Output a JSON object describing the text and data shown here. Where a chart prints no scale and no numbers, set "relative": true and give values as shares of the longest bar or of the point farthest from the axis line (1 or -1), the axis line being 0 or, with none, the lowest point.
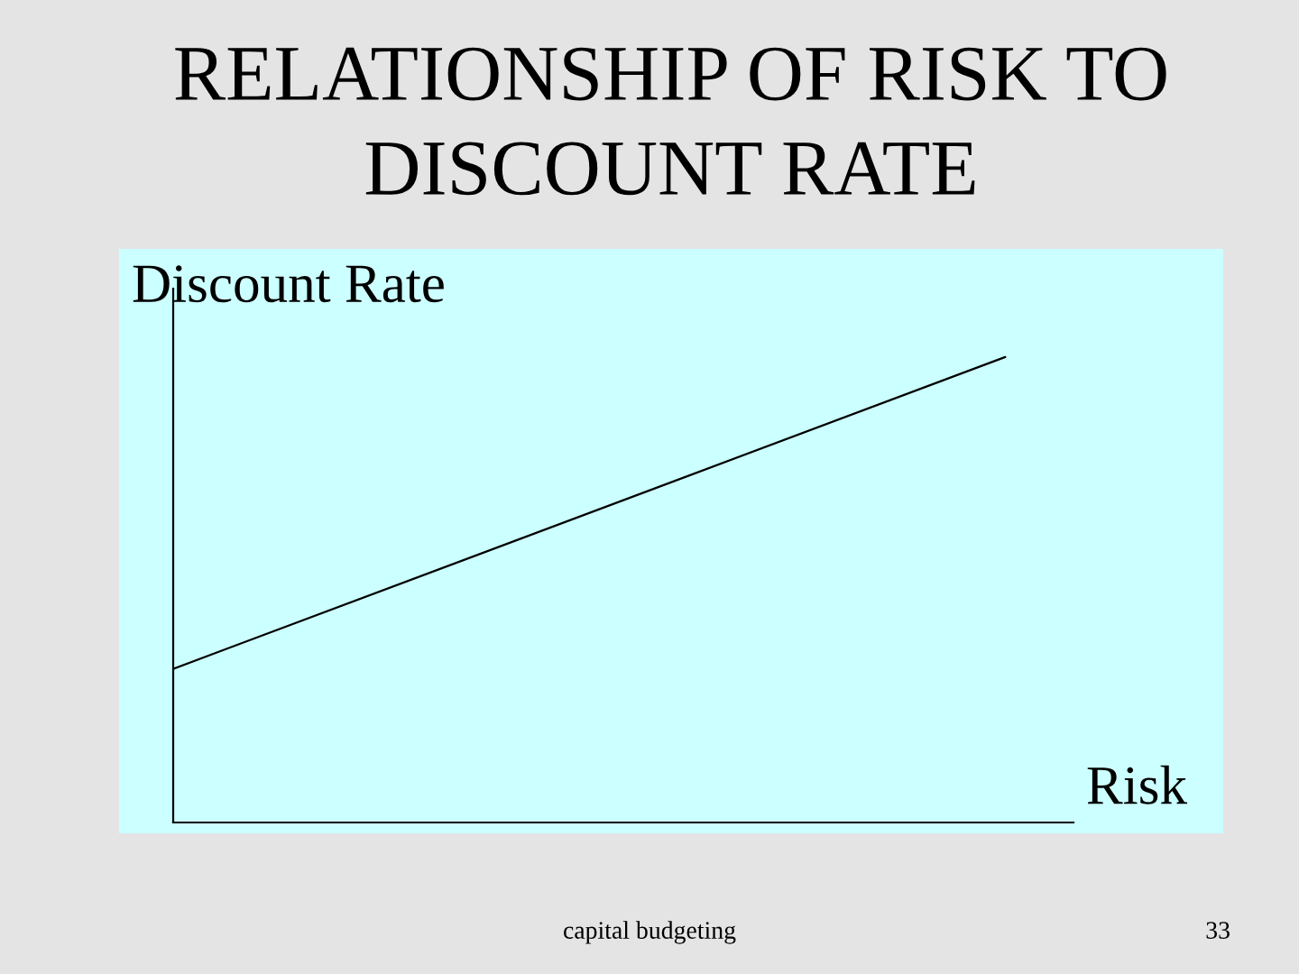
{
  "chart_data": {
    "type": "line",
    "title": "RELATIONSHIP OF RISK TO DISCOUNT RATE",
    "xlabel": "Risk",
    "ylabel": "Discount Rate",
    "categories": [
      null,
      null
    ],
    "series": [
      {
        "color": "#000000",
        "values": [
          0.33,
          1
        ]
      }
    ],
    "relative": true,
    "annotations": [
      "capital budgeting",
      "33"
    ]
  }
}
